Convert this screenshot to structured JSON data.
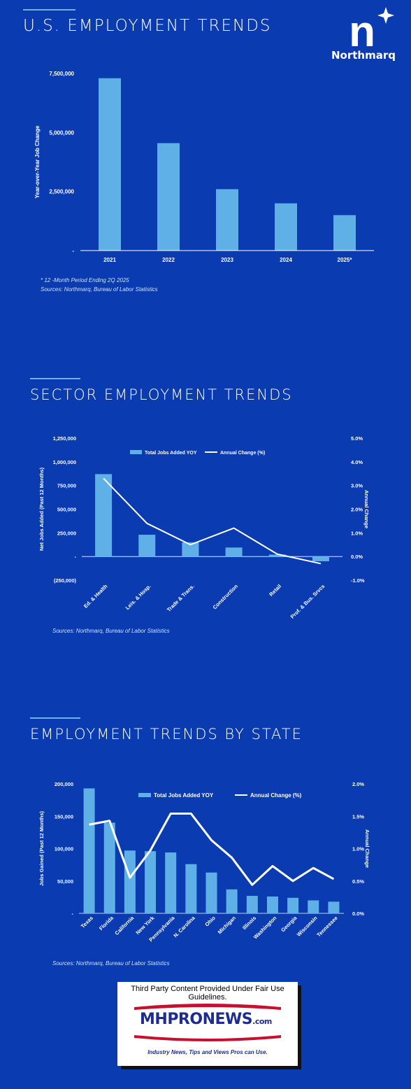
{
  "brand": {
    "name": "Northmarq",
    "mark": "n"
  },
  "sections": {
    "us": {
      "title": "U.S. EMPLOYMENT TRENDS",
      "footnote": "*  12 -Month Period Ending 2Q 2025",
      "sources": "Sources: Northmarq, Bureau of Labor Statistics"
    },
    "sector": {
      "title": "SECTOR EMPLOYMENT TRENDS",
      "sources": "Sources: Northmarq, Bureau of Labor Statistics"
    },
    "state": {
      "title": "EMPLOYMENT TRENDS BY STATE",
      "sources": "Sources: Northmarq,  Bureau of Labor Statistics"
    }
  },
  "credit": {
    "caption": "Third Party Content Provided Under Fair Use Guidelines.",
    "logo_mh": "MH",
    "logo_pro": "PRO",
    "logo_news": "NEWS",
    "logo_dotcom": ".com",
    "tagline": "Industry News, Tips and Views Pros can Use."
  },
  "colors": {
    "background": "#0a3bb1",
    "bar": "#5fb0e6",
    "line": "#ffffff",
    "rule": "#6cb4ea"
  },
  "chart_data": [
    {
      "type": "bar",
      "categories": [
        "2021",
        "2022",
        "2023",
        "2024",
        "2025*"
      ],
      "values": [
        7300000,
        4550000,
        2600000,
        2000000,
        1500000
      ],
      "ylabel": "Year-over-Year Job Change",
      "ylim": [
        0,
        7500000
      ],
      "yticks": [
        "-",
        "2,500,000",
        "5,000,000",
        "7,500,000"
      ],
      "grid": false
    },
    {
      "type": "bar",
      "categories": [
        "Ed. & Health",
        "Leis. & Hosp.",
        "Trade & Trans.",
        "Construction",
        "Retail",
        "Prof. & Bus. Srvcs"
      ],
      "series": [
        {
          "name": "Total Jobs Added YOY",
          "type": "bar",
          "values": [
            870000,
            230000,
            150000,
            95000,
            20000,
            -50000
          ]
        },
        {
          "name": "Annual Change (%)",
          "type": "line",
          "axis": "right",
          "values": [
            3.3,
            1.4,
            0.5,
            1.2,
            0.1,
            -0.3
          ]
        }
      ],
      "ylabel": "Net Jobs Added (Past 12 Months)",
      "y2label": "Annual Change",
      "ylim": [
        -250000,
        1250000
      ],
      "y2lim": [
        -1.0,
        5.0
      ],
      "yticks": [
        "(250,000)",
        "-",
        "250,000",
        "500,000",
        "750,000",
        "1,000,000",
        "1,250,000"
      ],
      "y2ticks": [
        "-1.0%",
        "0.0%",
        "1.0%",
        "2.0%",
        "3.0%",
        "4.0%",
        "5.0%"
      ],
      "legend": "top-center",
      "grid": false
    },
    {
      "type": "bar",
      "categories": [
        "Texas",
        "Florida",
        "California",
        "New York",
        "Pennsylvania",
        "N. Carolina",
        "Ohio",
        "Michigan",
        "Illinois",
        "Washington",
        "Georgia",
        "Wisconsin",
        "Tennessee"
      ],
      "series": [
        {
          "name": "Total Jobs Added YOY",
          "type": "bar",
          "values": [
            193000,
            140000,
            97000,
            96000,
            94000,
            76000,
            63000,
            37000,
            27000,
            26000,
            24000,
            20000,
            18000
          ]
        },
        {
          "name": "Annual Change (%)",
          "type": "line",
          "axis": "right",
          "values": [
            1.37,
            1.43,
            0.55,
            0.97,
            1.54,
            1.54,
            1.13,
            0.86,
            0.44,
            0.73,
            0.5,
            0.7,
            0.53
          ]
        }
      ],
      "ylabel": "Jobs Gained (Past 12 Months)",
      "y2label": "Annual Change",
      "ylim": [
        0,
        200000
      ],
      "y2lim": [
        0,
        2.0
      ],
      "yticks": [
        "-",
        "50,000",
        "100,000",
        "150,000",
        "200,000"
      ],
      "y2ticks": [
        "0.0%",
        "0.5%",
        "1.0%",
        "1.5%",
        "2.0%"
      ],
      "legend": "top-center",
      "grid": false
    }
  ]
}
